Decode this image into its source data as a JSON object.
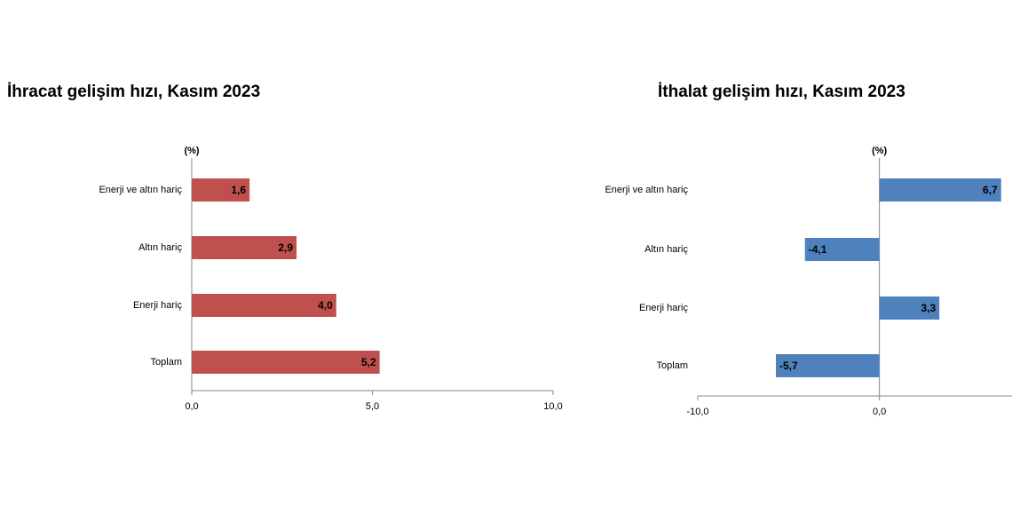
{
  "chart_data": [
    {
      "type": "bar",
      "orientation": "horizontal",
      "title": "İhracat gelişim hızı, Kasım 2023",
      "axis_label": "(%)",
      "categories": [
        "Enerji ve altın hariç",
        "Altın hariç",
        "Enerji hariç",
        "Toplam"
      ],
      "values": [
        1.6,
        2.9,
        4.0,
        5.2
      ],
      "value_labels": [
        "1,6",
        "2,9",
        "4,0",
        "5,2"
      ],
      "color": "#c0504d",
      "xlim": [
        0,
        10
      ],
      "xticks": [
        {
          "value": 0,
          "label": "0,0"
        },
        {
          "value": 5,
          "label": "5,0"
        },
        {
          "value": 10,
          "label": "10,0"
        }
      ]
    },
    {
      "type": "bar",
      "orientation": "horizontal",
      "title": "İthalat gelişim hızı, Kasım 2023",
      "axis_label": "(%)",
      "categories": [
        "Enerji ve altın hariç",
        "Altın hariç",
        "Enerji hariç",
        "Toplam"
      ],
      "values": [
        6.7,
        -4.1,
        3.3,
        -5.7
      ],
      "value_labels": [
        "6,7",
        "-4,1",
        "3,3",
        "-5,7"
      ],
      "color": "#4f81bd",
      "xlim": [
        -10,
        7.3
      ],
      "xticks": [
        {
          "value": -10,
          "label": "-10,0"
        },
        {
          "value": 0,
          "label": "0,0"
        }
      ]
    }
  ]
}
